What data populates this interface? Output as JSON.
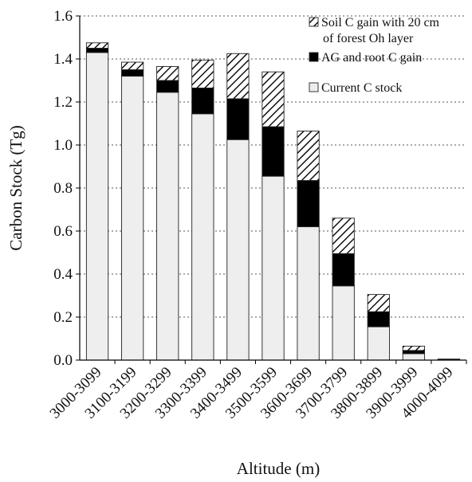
{
  "chart_data": {
    "type": "bar",
    "stacked": true,
    "title": "",
    "xlabel": "Altitude (m)",
    "ylabel": "Carbon Stock (Tg)",
    "ylim": [
      0,
      1.6
    ],
    "yticks": [
      "0.0",
      "0.2",
      "0.4",
      "0.6",
      "0.8",
      "1.0",
      "1.2",
      "1.4",
      "1.6"
    ],
    "grid": "horizontal dotted",
    "legend_position": "top-right",
    "categories": [
      "3000-3099",
      "3100-3199",
      "3200-3299",
      "3300-3399",
      "3400-3499",
      "3500-3599",
      "3600-3699",
      "3700-3799",
      "3800-3899",
      "3900-3999",
      "4000-4099"
    ],
    "series": [
      {
        "name": "Current C stock",
        "pattern": "light-gray",
        "color": "#eeeeee",
        "values": [
          1.43,
          1.32,
          1.245,
          1.145,
          1.025,
          0.855,
          0.62,
          0.345,
          0.155,
          0.03,
          0.002
        ]
      },
      {
        "name": "AG and root C gain",
        "pattern": "solid-black",
        "color": "#000000",
        "values": [
          0.02,
          0.03,
          0.055,
          0.12,
          0.19,
          0.23,
          0.215,
          0.15,
          0.07,
          0.015,
          0.001
        ]
      },
      {
        "name": "Soil C gain with 20 cm of forest Oh layer",
        "pattern": "diagonal-hatch",
        "color": "#ffffff",
        "values": [
          0.025,
          0.035,
          0.065,
          0.13,
          0.21,
          0.255,
          0.23,
          0.165,
          0.08,
          0.02,
          0.002
        ]
      }
    ],
    "legend": [
      {
        "lines": [
          "Soil C gain with 20 cm",
          "of forest Oh layer"
        ],
        "series": 2
      },
      {
        "lines": [
          "AG and root C gain"
        ],
        "series": 1
      },
      {
        "lines": [
          "Current C stock"
        ],
        "series": 0
      }
    ]
  }
}
